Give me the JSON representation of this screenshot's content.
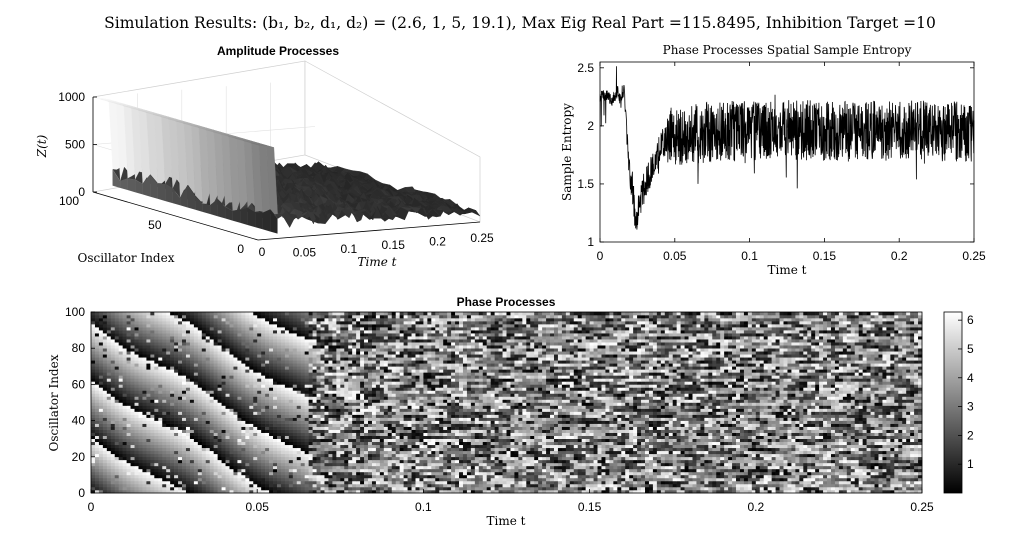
{
  "suptitle": "Simulation Results: (b₁, b₂, d₁, d₂) = (2.6, 1, 5, 19.1), Max Eig Real Part =115.8495, Inhibition Target =10",
  "chart_data": [
    {
      "id": "amplitude",
      "type": "surface3d",
      "title": "Amplitude Processes",
      "xlabel": "Time t",
      "ylabel": "Oscillator Index",
      "zlabel": "Z(t)",
      "x_ticks": [
        "0.05",
        "0.1",
        "0.15",
        "0.2",
        "0.25"
      ],
      "x_range": [
        0,
        0.25
      ],
      "y_ticks": [
        "0",
        "50",
        "100"
      ],
      "y_range": [
        0,
        100
      ],
      "z_ticks": [
        "0",
        "500",
        "1000"
      ],
      "z_range": [
        0,
        1000
      ],
      "x0_label": "0",
      "initial_amplitude": 1000,
      "transition_time": 0.022,
      "steady_amplitude_range": [
        0,
        300
      ],
      "colormap": "gray"
    },
    {
      "id": "entropy",
      "type": "line",
      "title": "Phase Processes Spatial Sample Entropy",
      "xlabel": "Time t",
      "ylabel": "Sample Entropy",
      "x_ticks": [
        "0",
        "0.05",
        "0.1",
        "0.15",
        "0.2",
        "0.25"
      ],
      "xlim": [
        0,
        0.25
      ],
      "y_ticks": [
        "1",
        "1.5",
        "2",
        "2.5"
      ],
      "ylim": [
        1,
        2.55
      ],
      "color": "#000000",
      "keypoints": [
        [
          0,
          2.25
        ],
        [
          0.004,
          2.27
        ],
        [
          0.008,
          2.22
        ],
        [
          0.012,
          2.3
        ],
        [
          0.014,
          2.2
        ],
        [
          0.016,
          2.32
        ],
        [
          0.018,
          1.95
        ],
        [
          0.02,
          1.6
        ],
        [
          0.022,
          1.45
        ],
        [
          0.024,
          1.12
        ],
        [
          0.026,
          1.3
        ],
        [
          0.03,
          1.5
        ],
        [
          0.034,
          1.6
        ],
        [
          0.038,
          1.75
        ],
        [
          0.042,
          1.85
        ],
        [
          0.05,
          1.92
        ],
        [
          0.08,
          1.95
        ],
        [
          0.12,
          1.97
        ],
        [
          0.16,
          1.95
        ],
        [
          0.2,
          1.96
        ],
        [
          0.25,
          1.95
        ]
      ]
    },
    {
      "id": "phase",
      "type": "heatmap",
      "title": "Phase Processes",
      "xlabel": "Time t",
      "ylabel": "Oscillator Index",
      "x_ticks": [
        "0",
        "0.05",
        "0.1",
        "0.15",
        "0.2",
        "0.25"
      ],
      "xlim": [
        0,
        0.25
      ],
      "y_ticks": [
        "0",
        "20",
        "40",
        "60",
        "80",
        "100"
      ],
      "ylim": [
        0,
        100
      ],
      "colorbar_ticks": [
        "1",
        "2",
        "3",
        "4",
        "5",
        "6"
      ],
      "clim": [
        0,
        6.283
      ],
      "colormap": "gray",
      "sync_until": 0.065
    }
  ]
}
